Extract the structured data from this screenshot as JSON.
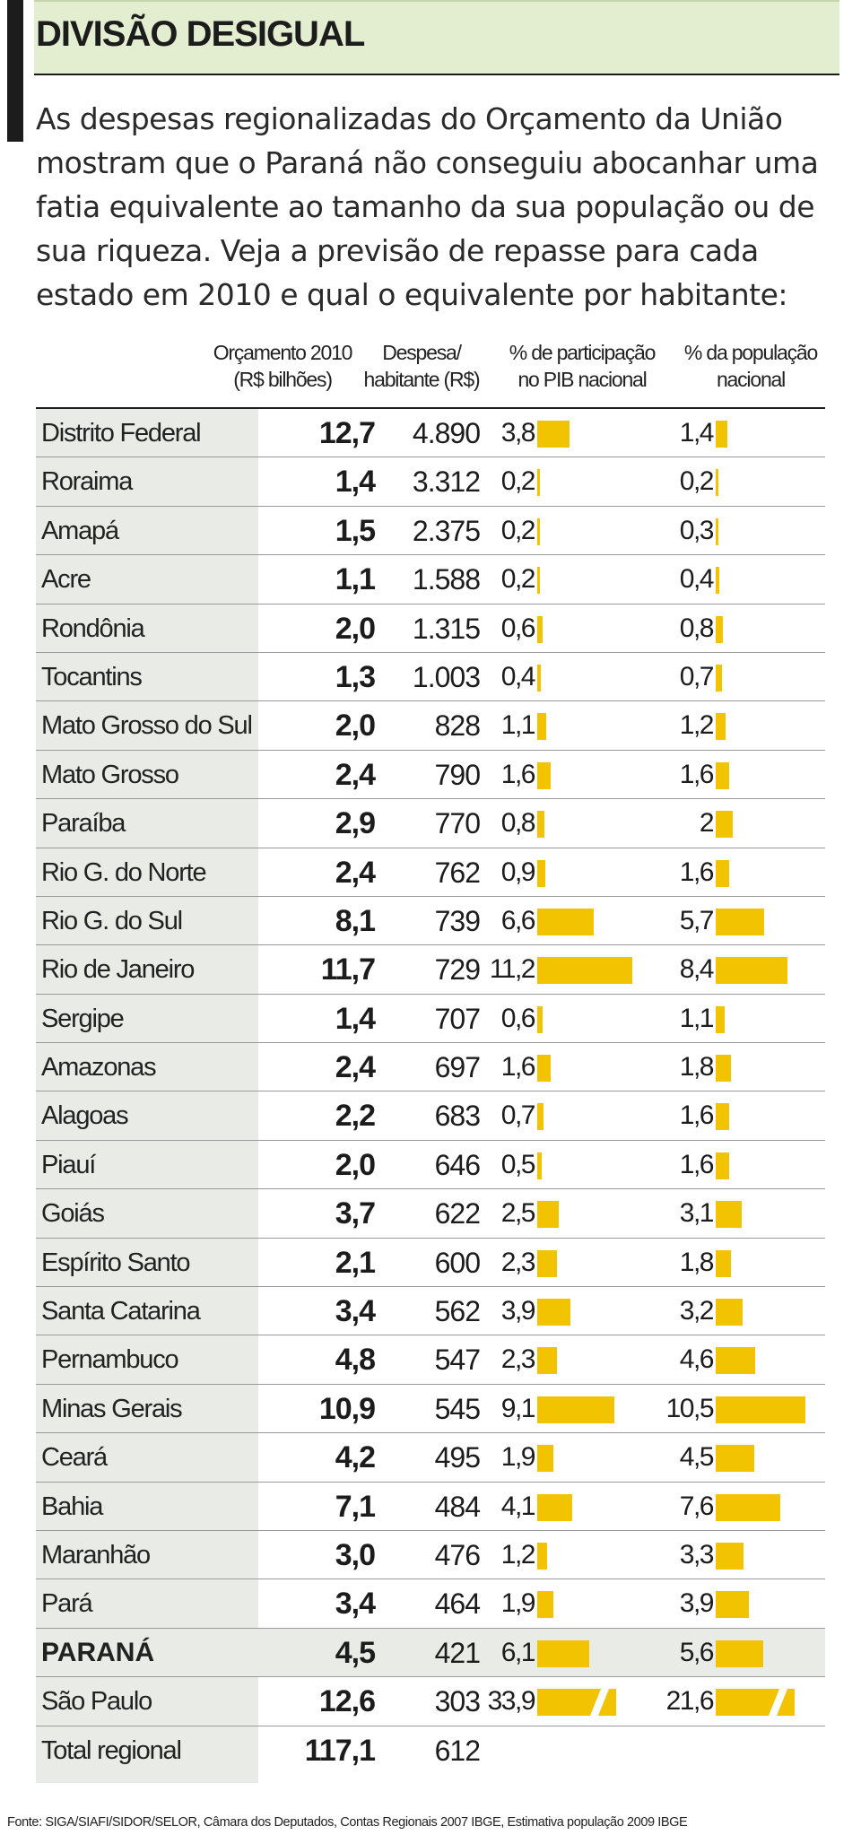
{
  "title": "DIVISÃO DESIGUAL",
  "intro": "As despesas regionalizadas do Orçamento da União mostram que o Paraná não conseguiu abocanhar uma fatia equivalente ao tamanho da sua população ou de sua riqueza. Veja a previsão de repasse para cada estado em 2010 e qual o equivalente por habitante:",
  "headers": {
    "orcamento_1": "Orçamento 2010",
    "orcamento_2": "(R$ bilhões)",
    "despesa_1": "Despesa/",
    "despesa_2": "habitante (R$)",
    "pib_1": "% de participação",
    "pib_2": "no PIB nacional",
    "pop_1": "% da população",
    "pop_2": "nacional"
  },
  "colors": {
    "bar": "#f2c300",
    "title_bg": "#e3edcf",
    "name_col_bg": "#e9ebe6"
  },
  "chart_data": {
    "type": "table",
    "columns": [
      "Orçamento 2010 (R$ bilhões)",
      "Despesa/ habitante (R$)",
      "% de participação no PIB nacional",
      "% da população nacional"
    ],
    "rows": [
      {
        "name": "Distrito Federal",
        "orcamento": "12,7",
        "despesa": "4.890",
        "pib": "3,8",
        "pop": "1,4",
        "pib_v": 3.8,
        "pop_v": 1.4
      },
      {
        "name": "Roraima",
        "orcamento": "1,4",
        "despesa": "3.312",
        "pib": "0,2",
        "pop": "0,2",
        "pib_v": 0.2,
        "pop_v": 0.2
      },
      {
        "name": "Amapá",
        "orcamento": "1,5",
        "despesa": "2.375",
        "pib": "0,2",
        "pop": "0,3",
        "pib_v": 0.2,
        "pop_v": 0.3
      },
      {
        "name": "Acre",
        "orcamento": "1,1",
        "despesa": "1.588",
        "pib": "0,2",
        "pop": "0,4",
        "pib_v": 0.2,
        "pop_v": 0.4
      },
      {
        "name": "Rondônia",
        "orcamento": "2,0",
        "despesa": "1.315",
        "pib": "0,6",
        "pop": "0,8",
        "pib_v": 0.6,
        "pop_v": 0.8
      },
      {
        "name": "Tocantins",
        "orcamento": "1,3",
        "despesa": "1.003",
        "pib": "0,4",
        "pop": "0,7",
        "pib_v": 0.4,
        "pop_v": 0.7
      },
      {
        "name": "Mato Grosso do Sul",
        "orcamento": "2,0",
        "despesa": "828",
        "pib": "1,1",
        "pop": "1,2",
        "pib_v": 1.1,
        "pop_v": 1.2
      },
      {
        "name": "Mato Grosso",
        "orcamento": "2,4",
        "despesa": "790",
        "pib": "1,6",
        "pop": "1,6",
        "pib_v": 1.6,
        "pop_v": 1.6
      },
      {
        "name": "Paraíba",
        "orcamento": "2,9",
        "despesa": "770",
        "pib": "0,8",
        "pop": "2",
        "pib_v": 0.8,
        "pop_v": 2.0
      },
      {
        "name": "Rio G. do Norte",
        "orcamento": "2,4",
        "despesa": "762",
        "pib": "0,9",
        "pop": "1,6",
        "pib_v": 0.9,
        "pop_v": 1.6
      },
      {
        "name": "Rio G. do Sul",
        "orcamento": "8,1",
        "despesa": "739",
        "pib": "6,6",
        "pop": "5,7",
        "pib_v": 6.6,
        "pop_v": 5.7
      },
      {
        "name": "Rio de Janeiro",
        "orcamento": "11,7",
        "despesa": "729",
        "pib": "11,2",
        "pop": "8,4",
        "pib_v": 11.2,
        "pop_v": 8.4
      },
      {
        "name": "Sergipe",
        "orcamento": "1,4",
        "despesa": "707",
        "pib": "0,6",
        "pop": "1,1",
        "pib_v": 0.6,
        "pop_v": 1.1
      },
      {
        "name": "Amazonas",
        "orcamento": "2,4",
        "despesa": "697",
        "pib": "1,6",
        "pop": "1,8",
        "pib_v": 1.6,
        "pop_v": 1.8
      },
      {
        "name": "Alagoas",
        "orcamento": "2,2",
        "despesa": "683",
        "pib": "0,7",
        "pop": "1,6",
        "pib_v": 0.7,
        "pop_v": 1.6
      },
      {
        "name": "Piauí",
        "orcamento": "2,0",
        "despesa": "646",
        "pib": "0,5",
        "pop": "1,6",
        "pib_v": 0.5,
        "pop_v": 1.6
      },
      {
        "name": "Goiás",
        "orcamento": "3,7",
        "despesa": "622",
        "pib": "2,5",
        "pop": "3,1",
        "pib_v": 2.5,
        "pop_v": 3.1
      },
      {
        "name": "Espírito Santo",
        "orcamento": "2,1",
        "despesa": "600",
        "pib": "2,3",
        "pop": "1,8",
        "pib_v": 2.3,
        "pop_v": 1.8
      },
      {
        "name": "Santa Catarina",
        "orcamento": "3,4",
        "despesa": "562",
        "pib": "3,9",
        "pop": "3,2",
        "pib_v": 3.9,
        "pop_v": 3.2
      },
      {
        "name": "Pernambuco",
        "orcamento": "4,8",
        "despesa": "547",
        "pib": "2,3",
        "pop": "4,6",
        "pib_v": 2.3,
        "pop_v": 4.6
      },
      {
        "name": "Minas Gerais",
        "orcamento": "10,9",
        "despesa": "545",
        "pib": "9,1",
        "pop": "10,5",
        "pib_v": 9.1,
        "pop_v": 10.5
      },
      {
        "name": "Ceará",
        "orcamento": "4,2",
        "despesa": "495",
        "pib": "1,9",
        "pop": "4,5",
        "pib_v": 1.9,
        "pop_v": 4.5
      },
      {
        "name": "Bahia",
        "orcamento": "7,1",
        "despesa": "484",
        "pib": "4,1",
        "pop": "7,6",
        "pib_v": 4.1,
        "pop_v": 7.6
      },
      {
        "name": "Maranhão",
        "orcamento": "3,0",
        "despesa": "476",
        "pib": "1,2",
        "pop": "3,3",
        "pib_v": 1.2,
        "pop_v": 3.3
      },
      {
        "name": "Pará",
        "orcamento": "3,4",
        "despesa": "464",
        "pib": "1,9",
        "pop": "3,9",
        "pib_v": 1.9,
        "pop_v": 3.9
      },
      {
        "name": "PARANÁ",
        "orcamento": "4,5",
        "despesa": "421",
        "pib": "6,1",
        "pop": "5,6",
        "pib_v": 6.1,
        "pop_v": 5.6,
        "highlight": true
      },
      {
        "name": "São Paulo",
        "orcamento": "12,6",
        "despesa": "303",
        "pib": "33,9",
        "pop": "21,6",
        "pib_v": 33.9,
        "pop_v": 21.6,
        "truncated": true
      },
      {
        "name": "Total regional",
        "orcamento": "117,1",
        "despesa": "612",
        "pib": "",
        "pop": "",
        "pib_v": null,
        "pop_v": null
      }
    ]
  },
  "source": "Fonte: SIGA/SIAFI/SIDOR/SELOR, Câmara dos Deputados, Contas Regionais 2007 IBGE, Estimativa população 2009 IBGE"
}
